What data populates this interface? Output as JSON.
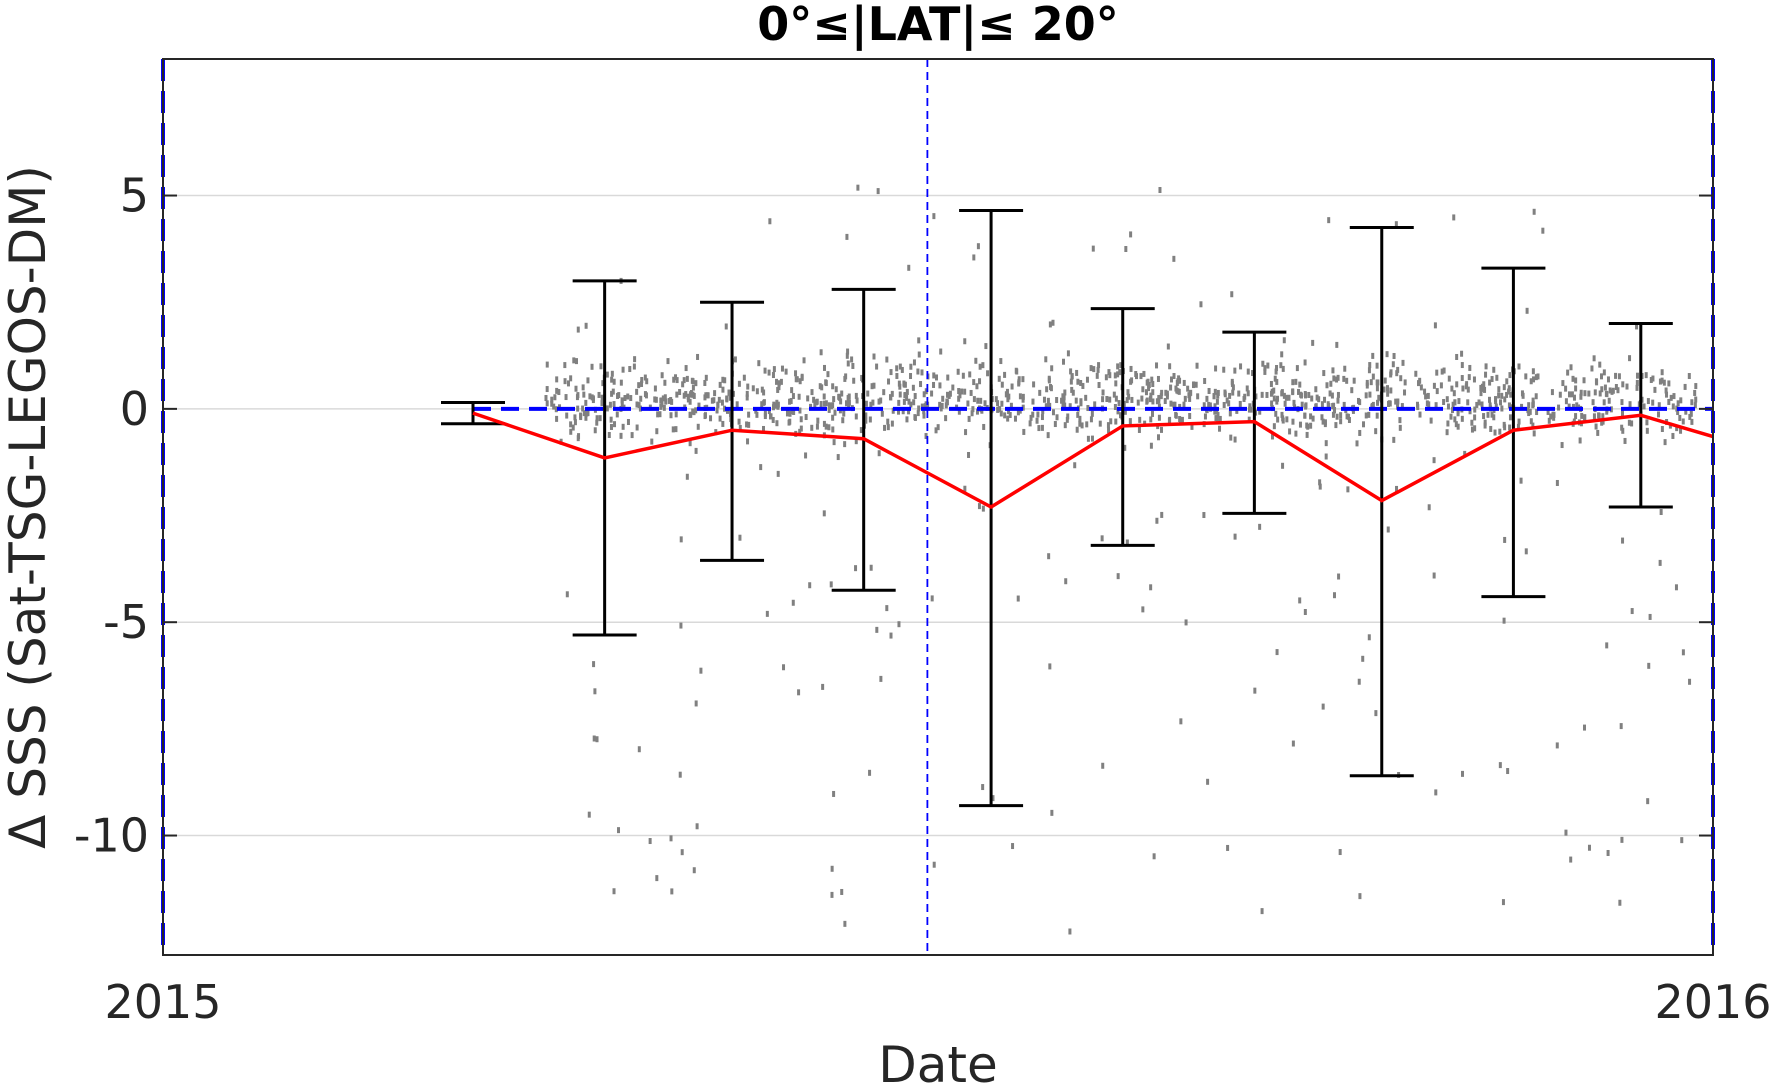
{
  "chart_data": {
    "type": "scatter",
    "title": "0°≤|LAT|≤ 20°",
    "xlabel": "Date",
    "ylabel": "Δ SSS (Sat-TSG-LEGOS-DM)",
    "x_ticks": [
      "2015",
      "2016"
    ],
    "y_ticks": [
      5,
      0,
      -5,
      -10
    ],
    "xlim": [
      "2015-01-01",
      "2016-01-01"
    ],
    "ylim": [
      -12.8,
      8.2
    ],
    "grid": true,
    "colors": {
      "scatter": "#808080",
      "mean_line": "#ff0000",
      "error_bars": "#000000",
      "reference": "#0000ff",
      "grid": "#d9d9d9"
    },
    "reference_line_y": 0,
    "vertical_markers": [
      "2015-01-01",
      "2015-06-30",
      "2016-01-01"
    ],
    "series": [
      {
        "type": "line",
        "x": [
          "2015-03-15",
          "2015-04-15",
          "2015-05-15",
          "2015-06-15",
          "2015-07-15",
          "2015-08-15",
          "2015-09-15",
          "2015-10-15",
          "2015-11-15",
          "2015-12-15",
          "2016-01-01"
        ],
        "y": [
          -0.1,
          -1.15,
          -0.5,
          -0.7,
          -2.3,
          -0.4,
          -0.3,
          -2.15,
          -0.5,
          -0.15,
          -0.65
        ]
      },
      {
        "type": "errorbar",
        "x": [
          "2015-03-15",
          "2015-04-15",
          "2015-05-15",
          "2015-06-15",
          "2015-07-15",
          "2015-08-15",
          "2015-09-15",
          "2015-10-15",
          "2015-11-15",
          "2015-12-15"
        ],
        "upper": [
          0.15,
          3.0,
          2.5,
          2.8,
          4.65,
          2.35,
          1.8,
          4.25,
          3.3,
          2.0
        ],
        "lower": [
          -0.35,
          -5.3,
          -3.55,
          -4.25,
          -9.3,
          -3.2,
          -2.45,
          -8.6,
          -4.4,
          -2.3
        ]
      }
    ]
  }
}
